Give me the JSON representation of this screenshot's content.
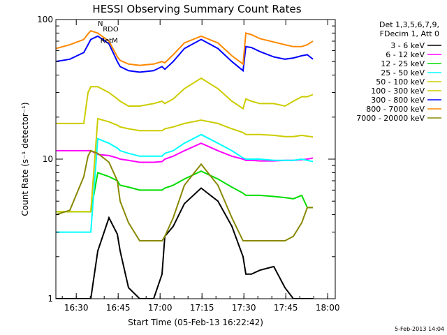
{
  "chart_data": {
    "type": "line",
    "title": "HESSI Observing Summary Count Rates",
    "xlabel": "Start Time (05-Feb-13 16:22:42)",
    "ylabel": "Count Rate (s⁻¹ detector⁻¹)",
    "x_unit": "minutes after 16:22:42",
    "xlim": [
      0,
      100
    ],
    "ylim": [
      1,
      100
    ],
    "yscale": "log",
    "grid": false,
    "legend_position": "right",
    "x_ticks": [
      {
        "x": 7.3,
        "label": "16:30"
      },
      {
        "x": 22.3,
        "label": "16:45"
      },
      {
        "x": 37.3,
        "label": "17:00"
      },
      {
        "x": 52.3,
        "label": "17:15"
      },
      {
        "x": 67.3,
        "label": "17:30"
      },
      {
        "x": 82.3,
        "label": "17:45"
      },
      {
        "x": 97.3,
        "label": "18:00"
      }
    ],
    "y_ticks": [
      {
        "y": 1,
        "label": "1"
      },
      {
        "y": 10,
        "label": "10"
      },
      {
        "y": 100,
        "label": "100"
      }
    ],
    "legend_header": [
      "Det 1,3,5,6,7,9,",
      "FDecim 1, Att 0"
    ],
    "annotations": [
      {
        "text": "RDO",
        "x": 16.8,
        "y": 82
      },
      {
        "text": "RetM",
        "x": 15.9,
        "y": 68
      },
      {
        "text": "N",
        "x": 15.0,
        "y": 90
      }
    ],
    "x": [
      0,
      5,
      10,
      11.5,
      12.5,
      15,
      19,
      22,
      23,
      26,
      30,
      35,
      38,
      39,
      42,
      46,
      52,
      58,
      63,
      67,
      68,
      70,
      73,
      78,
      82,
      85,
      88,
      90,
      92
    ],
    "series": [
      {
        "name": "3 - 6 keV",
        "color": "#000000",
        "values": [
          1,
          1,
          1,
          1,
          1,
          2.2,
          3.8,
          2.9,
          2.2,
          1.2,
          1,
          1,
          1.5,
          2.8,
          3.3,
          4.8,
          6.2,
          5,
          3.3,
          2,
          1.5,
          1.5,
          1.6,
          1.7,
          1.2,
          1,
          1,
          1,
          1
        ]
      },
      {
        "name": "6 - 12 keV",
        "color": "#ff00ff",
        "values": [
          11.5,
          11.5,
          11.5,
          11.5,
          11.5,
          10.8,
          10.6,
          10.2,
          10,
          9.8,
          9.5,
          9.5,
          9.6,
          10,
          10.5,
          11.5,
          13,
          11.5,
          10.5,
          10,
          9.8,
          9.8,
          9.7,
          9.7,
          9.8,
          9.8,
          9.9,
          10,
          10.2
        ]
      },
      {
        "name": "12 - 25 keV",
        "color": "#00dd00",
        "values": [
          4.2,
          4.2,
          4.2,
          4.2,
          4.2,
          8,
          7.5,
          7,
          6.5,
          6.3,
          6,
          6,
          6,
          6.2,
          6.5,
          7.2,
          8.2,
          7.2,
          6.3,
          5.7,
          5.5,
          5.5,
          5.5,
          5.4,
          5.3,
          5.2,
          5.5,
          4.5,
          4.5
        ]
      },
      {
        "name": "25 - 50 keV",
        "color": "#00ffff",
        "values": [
          3,
          3,
          3,
          3,
          3,
          14,
          13,
          12,
          11.5,
          11,
          10.5,
          10.5,
          10.5,
          11,
          11.5,
          13,
          15,
          13,
          11.5,
          10.2,
          10,
          10,
          10,
          9.8,
          9.8,
          9.8,
          10,
          9.8,
          9.6
        ]
      },
      {
        "name": "50 - 100 keV",
        "color": "#cccc00",
        "values": [
          4.2,
          4.2,
          4.2,
          4.2,
          4.2,
          19.5,
          18.5,
          17.5,
          17,
          16.5,
          16,
          16,
          16,
          16.5,
          17,
          18,
          19,
          18,
          16.5,
          15.5,
          15,
          15,
          15,
          14.8,
          14.5,
          14.5,
          14.8,
          14.6,
          14.4
        ]
      },
      {
        "name": "100 - 300 keV",
        "color": "#cccc00",
        "values": [
          18,
          18,
          18,
          30,
          33,
          33,
          30,
          27,
          26,
          24,
          24,
          25,
          26,
          25,
          27,
          32,
          38,
          32,
          26,
          23,
          27,
          26,
          25,
          25,
          24,
          26,
          28,
          28,
          29
        ]
      },
      {
        "name": "300 - 800 keV",
        "color": "#0000ff",
        "values": [
          50,
          52,
          58,
          66,
          72,
          76,
          67,
          50,
          46,
          43,
          42,
          43,
          46,
          44,
          50,
          62,
          72,
          62,
          50,
          43,
          64,
          63,
          59,
          54,
          52,
          53,
          55,
          56,
          52
        ]
      },
      {
        "name": "800 - 7000 keV",
        "color": "#ff8800",
        "values": [
          62,
          66,
          72,
          79,
          83,
          80,
          70,
          54,
          51,
          48,
          47,
          48,
          50,
          49,
          56,
          68,
          76,
          68,
          55,
          48,
          80,
          78,
          73,
          69,
          66,
          64,
          64,
          66,
          70
        ]
      },
      {
        "name": "7000 - 20000 keV",
        "color": "#888800",
        "values": [
          4,
          4.3,
          7.5,
          10.5,
          11.5,
          11,
          9.5,
          7,
          5,
          3.5,
          2.6,
          2.6,
          2.6,
          2.8,
          3.8,
          6.5,
          9.2,
          6.5,
          3.8,
          2.6,
          2.6,
          2.6,
          2.6,
          2.6,
          2.6,
          2.8,
          3.5,
          4.5,
          4.5
        ]
      }
    ]
  },
  "footer_date": "5-Feb-2013 14:04"
}
